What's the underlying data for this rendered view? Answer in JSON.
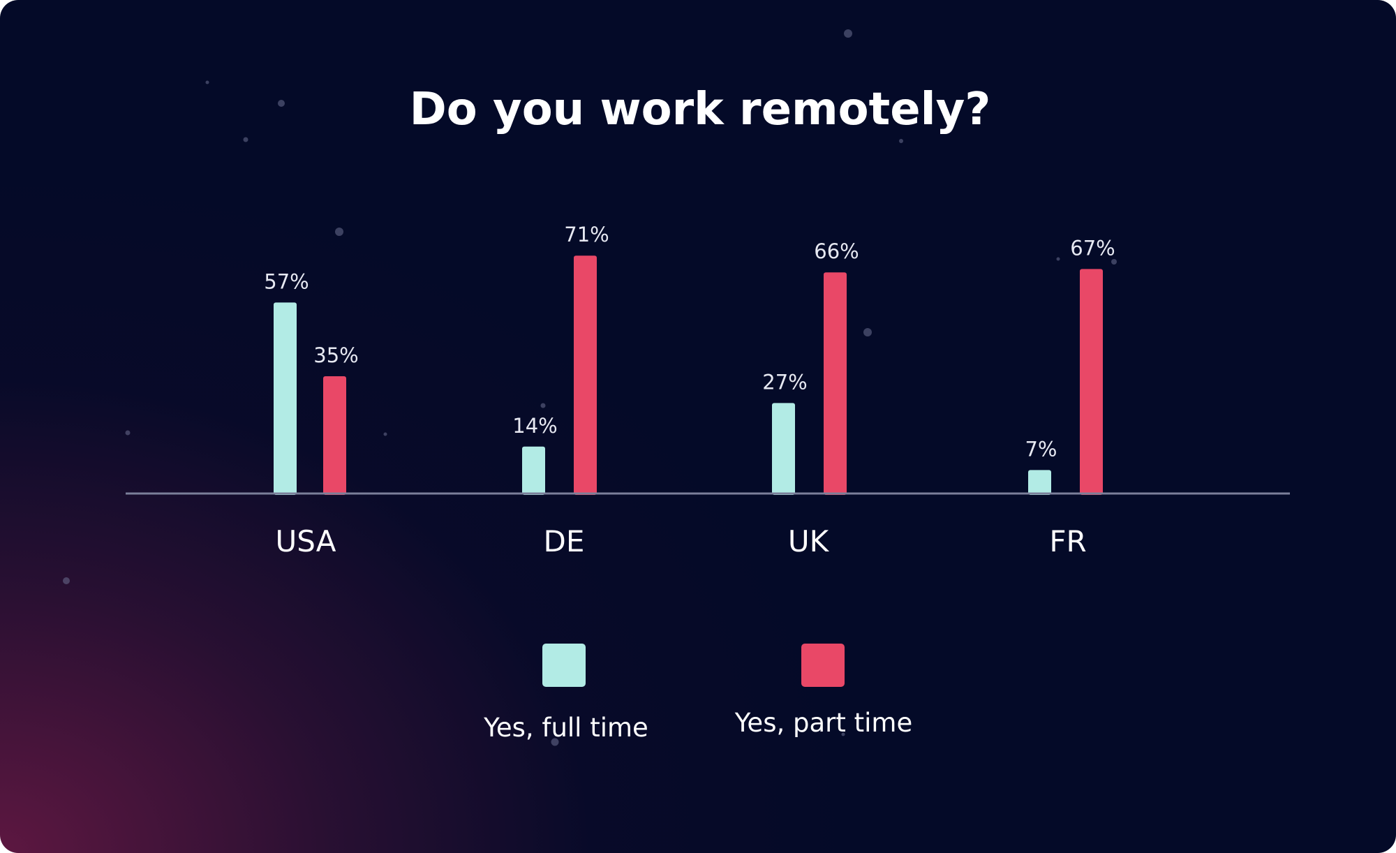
{
  "chart_data": {
    "type": "bar",
    "title": "Do you work remotely?",
    "categories": [
      "USA",
      "DE",
      "UK",
      "FR"
    ],
    "series": [
      {
        "name": "Yes, full time",
        "color": "#b2ebe5",
        "values": [
          57,
          14,
          27,
          7
        ],
        "labels": [
          "57%",
          "14%",
          "27%",
          "7%"
        ]
      },
      {
        "name": "Yes, part time",
        "color": "#e94867",
        "values": [
          35,
          71,
          66,
          67
        ],
        "labels": [
          "35%",
          "71%",
          "66%",
          "67%"
        ]
      }
    ],
    "xlabel": "",
    "ylabel": "",
    "ylim": [
      0,
      100
    ],
    "grid": false,
    "legend": "bottom",
    "axis_color": "#7b7f9a",
    "background": "#040a28"
  }
}
